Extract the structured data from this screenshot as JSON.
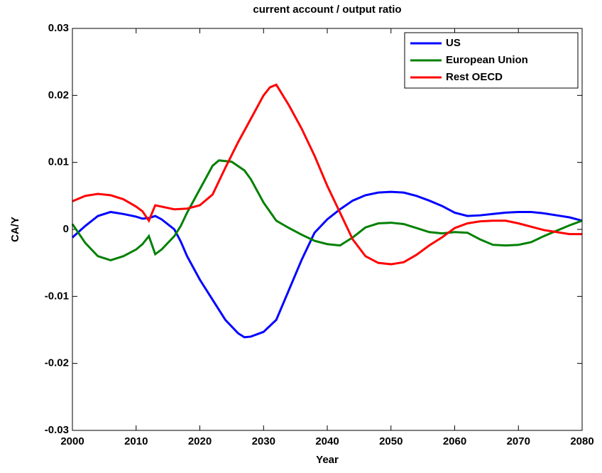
{
  "chart_data": {
    "type": "line",
    "title": "current account / output ratio",
    "x_label": "Year",
    "y_label": "CA/Y",
    "xlim": [
      2000,
      2080
    ],
    "xticks": [
      2000,
      2010,
      2020,
      2030,
      2040,
      2050,
      2060,
      2070,
      2080
    ],
    "ylim": [
      -0.03,
      0.03
    ],
    "yticks": [
      -0.03,
      -0.02,
      -0.01,
      0,
      0.01,
      0.02,
      0.03
    ],
    "legend": "upper right",
    "series": [
      {
        "name": "US",
        "color": "#0000ff",
        "x": [
          2000,
          2002,
          2004,
          2006,
          2008,
          2010,
          2011,
          2012,
          2013,
          2014,
          2016,
          2017,
          2018,
          2020,
          2022,
          2024,
          2026,
          2027,
          2028,
          2030,
          2032,
          2034,
          2036,
          2038,
          2040,
          2042,
          2044,
          2046,
          2048,
          2050,
          2052,
          2054,
          2056,
          2058,
          2060,
          2062,
          2064,
          2066,
          2068,
          2070,
          2072,
          2074,
          2076,
          2078,
          2080
        ],
        "values": [
          -0.0012,
          0.0005,
          0.002,
          0.0026,
          0.0023,
          0.0019,
          0.0016,
          0.0017,
          0.002,
          0.0015,
          0.0,
          -0.0018,
          -0.004,
          -0.0075,
          -0.0105,
          -0.0135,
          -0.0155,
          -0.0161,
          -0.016,
          -0.0153,
          -0.0135,
          -0.009,
          -0.0045,
          -0.0005,
          0.0015,
          0.003,
          0.0043,
          0.0051,
          0.0055,
          0.0056,
          0.0055,
          0.005,
          0.0043,
          0.0035,
          0.0025,
          0.002,
          0.0021,
          0.0023,
          0.0025,
          0.0026,
          0.0026,
          0.0024,
          0.0021,
          0.0018,
          0.0013
        ]
      },
      {
        "name": "European Union",
        "color": "#008000",
        "x": [
          2000,
          2002,
          2004,
          2006,
          2008,
          2010,
          2011,
          2012,
          2013,
          2014,
          2016,
          2017,
          2018,
          2020,
          2022,
          2023,
          2025,
          2027,
          2028,
          2030,
          2032,
          2034,
          2036,
          2038,
          2040,
          2042,
          2044,
          2046,
          2048,
          2050,
          2052,
          2054,
          2056,
          2058,
          2060,
          2062,
          2064,
          2066,
          2068,
          2070,
          2072,
          2074,
          2076,
          2078,
          2080
        ],
        "values": [
          0.0008,
          -0.002,
          -0.004,
          -0.0046,
          -0.004,
          -0.003,
          -0.0022,
          -0.001,
          -0.0037,
          -0.003,
          -0.001,
          0.0005,
          0.0025,
          0.006,
          0.0095,
          0.0103,
          0.0101,
          0.0088,
          0.0075,
          0.004,
          0.0013,
          0.0002,
          -0.0008,
          -0.0017,
          -0.0022,
          -0.0024,
          -0.0012,
          0.0003,
          0.0009,
          0.001,
          0.0008,
          0.0002,
          -0.0004,
          -0.0006,
          -0.0004,
          -0.0005,
          -0.0015,
          -0.0023,
          -0.0024,
          -0.0023,
          -0.0019,
          -0.001,
          -0.0002,
          0.0006,
          0.0013
        ]
      },
      {
        "name": "Rest OECD",
        "color": "#ff0000",
        "x": [
          2000,
          2002,
          2004,
          2006,
          2008,
          2010,
          2011,
          2012,
          2013,
          2014,
          2016,
          2018,
          2020,
          2022,
          2024,
          2026,
          2028,
          2030,
          2031,
          2032,
          2034,
          2036,
          2038,
          2040,
          2042,
          2044,
          2046,
          2048,
          2050,
          2052,
          2054,
          2056,
          2058,
          2060,
          2062,
          2064,
          2066,
          2068,
          2070,
          2072,
          2074,
          2076,
          2078,
          2080
        ],
        "values": [
          0.0042,
          0.005,
          0.0053,
          0.0051,
          0.0045,
          0.0034,
          0.0027,
          0.0013,
          0.0036,
          0.0034,
          0.003,
          0.0031,
          0.0036,
          0.0052,
          0.0092,
          0.013,
          0.0165,
          0.02,
          0.0212,
          0.0216,
          0.0185,
          0.015,
          0.011,
          0.0065,
          0.0025,
          -0.0015,
          -0.004,
          -0.005,
          -0.0052,
          -0.0049,
          -0.0038,
          -0.0024,
          -0.0012,
          0.0002,
          0.0009,
          0.0012,
          0.0013,
          0.0013,
          0.0009,
          0.0004,
          -0.0001,
          -0.0004,
          -0.0007,
          -0.0007
        ]
      }
    ]
  }
}
